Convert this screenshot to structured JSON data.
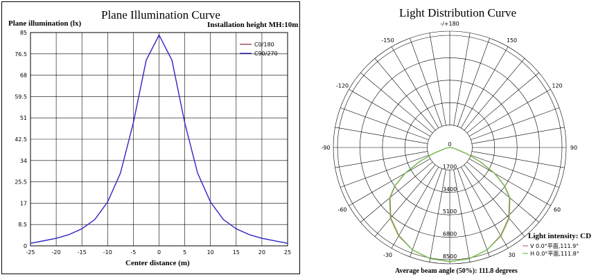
{
  "chart_data": [
    {
      "type": "line",
      "title": "Plane Illumination Curve",
      "subtitle": "Installation height MH:10m",
      "xlabel": "Center distance (m)",
      "ylabel": "Plane illumination (lx)",
      "xlim": [
        -25,
        25
      ],
      "ylim": [
        0,
        85
      ],
      "xticks": [
        "-25",
        "-20",
        "-15",
        "-10",
        "-5",
        "0",
        "5",
        "10",
        "15",
        "20",
        "25"
      ],
      "yticks": [
        "0",
        "8.5",
        "17",
        "25.5",
        "34",
        "42.5",
        "51",
        "59.5",
        "68",
        "76.5",
        "85"
      ],
      "grid": true,
      "legend_position": "top-right",
      "x": [
        -25,
        -22.5,
        -20,
        -17.5,
        -15,
        -12.5,
        -10,
        -7.5,
        -5,
        -2.5,
        0,
        2.5,
        5,
        7.5,
        10,
        12.5,
        15,
        17.5,
        20,
        22.5,
        25
      ],
      "series": [
        {
          "name": "C0/180",
          "color": "#8b2f3a",
          "values": [
            1,
            2,
            3,
            4.5,
            6.8,
            10.5,
            17.5,
            29,
            49,
            74,
            84,
            74,
            49,
            29,
            17.5,
            10.5,
            6.8,
            4.5,
            3,
            2,
            1
          ]
        },
        {
          "name": "C90/270",
          "color": "#2b2bd6",
          "values": [
            1,
            2,
            3,
            4.5,
            6.8,
            10.5,
            17.5,
            29,
            49,
            74,
            84,
            74,
            49,
            29,
            17.5,
            10.5,
            6.8,
            4.5,
            3,
            2,
            1
          ]
        }
      ]
    },
    {
      "type": "polar",
      "title": "Light Distribution Curve",
      "angle_labels": [
        "-/+180",
        "150",
        "120",
        "90",
        "60",
        "30",
        "0",
        "-30",
        "-60",
        "-90",
        "-120",
        "-150"
      ],
      "radial_ticks": [
        "0",
        "1700",
        "3400",
        "5100",
        "6800",
        "8500"
      ],
      "rmax": 8500,
      "intensity_label": "Light intensity: CD",
      "footer": "Average beam angle (50%): 111.8 degrees",
      "angles": [
        0,
        10,
        20,
        30,
        40,
        50,
        55,
        60,
        65,
        70,
        80,
        90
      ],
      "series": [
        {
          "name": "V 0.0°平面,111.9°",
          "color": "#c56a6a",
          "values": [
            8650,
            8550,
            8250,
            7700,
            6950,
            5900,
            5050,
            3900,
            2500,
            1300,
            300,
            0
          ]
        },
        {
          "name": "H 0.0°平面,111.8°",
          "color": "#6cc24a",
          "values": [
            8650,
            8550,
            8250,
            7750,
            7000,
            5950,
            5100,
            3950,
            2550,
            1350,
            320,
            0
          ]
        }
      ]
    }
  ]
}
